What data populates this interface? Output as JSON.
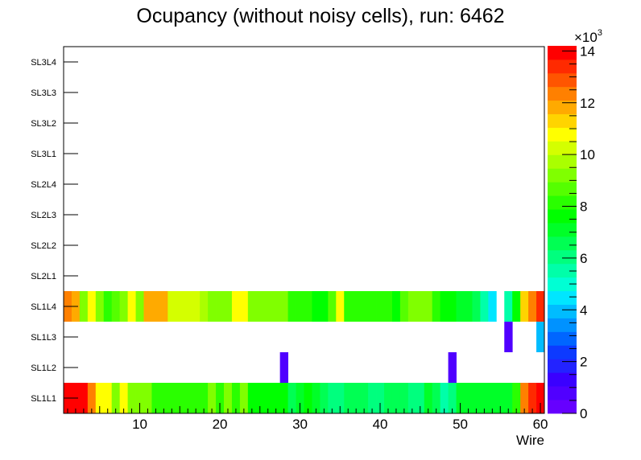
{
  "chart_data": {
    "type": "heatmap",
    "title": "Ocupancy (without noisy cells), run: 6462",
    "xlabel": "Wire",
    "ylabel": "",
    "xlim": [
      0.5,
      60.5
    ],
    "x_ticks": [
      10,
      20,
      30,
      40,
      50,
      60
    ],
    "y_categories": [
      "SL1L1",
      "SL1L2",
      "SL1L3",
      "SL1L4",
      "SL2L1",
      "SL2L2",
      "SL2L3",
      "SL2L4",
      "SL3L1",
      "SL3L2",
      "SL3L3",
      "SL3L4"
    ],
    "z_range": [
      0,
      14200
    ],
    "z_ticks": [
      0,
      2,
      4,
      6,
      8,
      10,
      12,
      14
    ],
    "z_multiplier_label": "×10",
    "z_multiplier_exponent": "3",
    "palette": [
      "#6600ff",
      "#5000ff",
      "#3a00ff",
      "#2323ff",
      "#0d3aff",
      "#0066ff",
      "#0092ff",
      "#00bcff",
      "#00e6ff",
      "#00ffd4",
      "#00ffa9",
      "#00ff7e",
      "#00ff53",
      "#00ff28",
      "#00ff00",
      "#2aff00",
      "#55ff00",
      "#80ff00",
      "#aaff00",
      "#d4ff00",
      "#ffff00",
      "#ffd400",
      "#ffaa00",
      "#ff8000",
      "#ff5500",
      "#ff2a00",
      "#ff0000"
    ],
    "series": [
      {
        "name": "SL1L1",
        "values": [
          14100,
          14100,
          14100,
          12400,
          10700,
          10700,
          9400,
          10600,
          9300,
          9300,
          9300,
          8000,
          8000,
          8000,
          8000,
          8000,
          8000,
          8000,
          9100,
          8000,
          9100,
          8200,
          9300,
          7700,
          7700,
          7700,
          7700,
          7600,
          6500,
          7100,
          7500,
          6900,
          6600,
          6200,
          6200,
          6600,
          6600,
          6400,
          6100,
          6100,
          6600,
          6600,
          6400,
          6100,
          6100,
          6900,
          6600,
          5300,
          6200,
          7100,
          7100,
          7100,
          7100,
          7100,
          7100,
          7100,
          8400,
          12400,
          13400,
          14100
        ]
      },
      {
        "name": "SL1L2",
        "values": [
          null,
          null,
          null,
          null,
          null,
          null,
          null,
          null,
          null,
          null,
          null,
          null,
          null,
          null,
          null,
          null,
          null,
          null,
          null,
          null,
          null,
          null,
          null,
          null,
          null,
          null,
          null,
          800,
          null,
          null,
          null,
          null,
          null,
          null,
          null,
          null,
          null,
          null,
          null,
          null,
          null,
          null,
          null,
          null,
          null,
          null,
          null,
          null,
          800,
          null,
          null,
          null,
          null,
          null,
          null,
          null,
          null,
          null,
          null,
          null
        ]
      },
      {
        "name": "SL1L3",
        "values": [
          null,
          null,
          null,
          null,
          null,
          null,
          null,
          null,
          null,
          null,
          null,
          null,
          null,
          null,
          null,
          null,
          null,
          null,
          null,
          null,
          null,
          null,
          null,
          null,
          null,
          null,
          null,
          null,
          null,
          null,
          null,
          null,
          null,
          null,
          null,
          null,
          null,
          null,
          null,
          null,
          null,
          null,
          null,
          null,
          null,
          null,
          null,
          null,
          null,
          null,
          null,
          null,
          null,
          null,
          null,
          800,
          null,
          null,
          null,
          3800
        ]
      },
      {
        "name": "SL1L4",
        "values": [
          12400,
          11700,
          9400,
          10900,
          9200,
          8000,
          8700,
          9300,
          10900,
          9300,
          12000,
          12000,
          12000,
          10300,
          10300,
          10300,
          10300,
          9900,
          9300,
          9300,
          9300,
          10600,
          10600,
          9000,
          9000,
          9000,
          9000,
          9000,
          8200,
          8200,
          8200,
          7700,
          7700,
          8600,
          10900,
          8000,
          8000,
          8000,
          8000,
          8000,
          8000,
          7600,
          8700,
          9300,
          9300,
          9300,
          8400,
          7700,
          7700,
          7100,
          7100,
          6700,
          5600,
          4600,
          null,
          5600,
          7700,
          11400,
          12400,
          13400
        ]
      },
      {
        "name": "SL2L1",
        "values": []
      },
      {
        "name": "SL2L2",
        "values": []
      },
      {
        "name": "SL2L3",
        "values": []
      },
      {
        "name": "SL2L4",
        "values": []
      },
      {
        "name": "SL3L1",
        "values": []
      },
      {
        "name": "SL3L2",
        "values": []
      },
      {
        "name": "SL3L3",
        "values": []
      },
      {
        "name": "SL3L4",
        "values": []
      }
    ]
  }
}
